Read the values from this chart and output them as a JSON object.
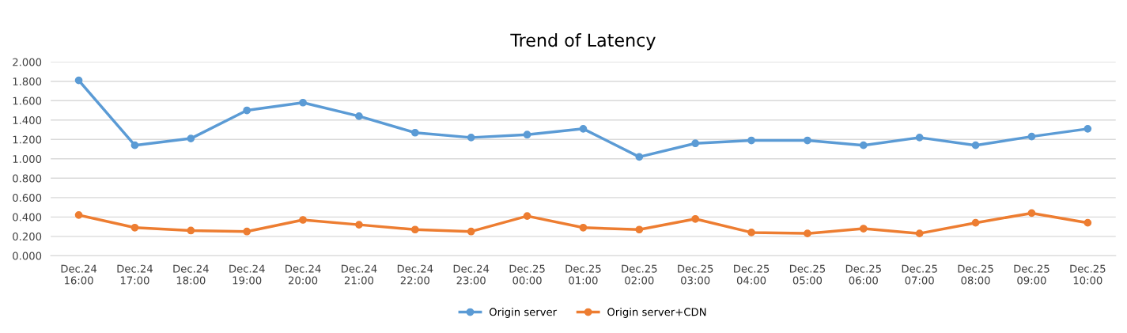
{
  "chart_data": {
    "type": "line",
    "title": "Trend of Latency",
    "categories": [
      "Dec.24\n16:00",
      "Dec.24\n17:00",
      "Dec.24\n18:00",
      "Dec.24\n19:00",
      "Dec.24\n20:00",
      "Dec.24\n21:00",
      "Dec.24\n22:00",
      "Dec.24\n23:00",
      "Dec.25\n00:00",
      "Dec.25\n01:00",
      "Dec.25\n02:00",
      "Dec.25\n03:00",
      "Dec.25\n04:00",
      "Dec.25\n05:00",
      "Dec.25\n06:00",
      "Dec.25\n07:00",
      "Dec.25\n08:00",
      "Dec.25\n09:00",
      "Dec.25\n10:00"
    ],
    "series": [
      {
        "name": "Origin server",
        "color": "#5b9bd5",
        "values": [
          1.81,
          1.14,
          1.21,
          1.5,
          1.58,
          1.44,
          1.27,
          1.22,
          1.25,
          1.31,
          1.02,
          1.16,
          1.19,
          1.19,
          1.14,
          1.22,
          1.14,
          1.23,
          1.31
        ]
      },
      {
        "name": "Origin server+CDN",
        "color": "#ed7d31",
        "values": [
          0.42,
          0.29,
          0.26,
          0.25,
          0.37,
          0.32,
          0.27,
          0.25,
          0.41,
          0.29,
          0.27,
          0.38,
          0.24,
          0.23,
          0.28,
          0.23,
          0.34,
          0.44,
          0.34
        ]
      }
    ],
    "ylim": [
      0,
      2
    ],
    "yticks": [
      {
        "value": 0,
        "label": "0.000"
      },
      {
        "value": 0.2,
        "label": "0.200"
      },
      {
        "value": 0.4,
        "label": "0.400"
      },
      {
        "value": 0.6,
        "label": "0.600"
      },
      {
        "value": 0.8,
        "label": "0.800"
      },
      {
        "value": 1.0,
        "label": "1.000"
      },
      {
        "value": 1.2,
        "label": "1.200"
      },
      {
        "value": 1.4,
        "label": "1.400"
      },
      {
        "value": 1.6,
        "label": "1.600"
      },
      {
        "value": 1.8,
        "label": "1.800"
      },
      {
        "value": 2.0,
        "label": "2.000"
      }
    ],
    "grid": "y",
    "legend": "bottom",
    "marker": "circle",
    "line_style": "solid"
  }
}
